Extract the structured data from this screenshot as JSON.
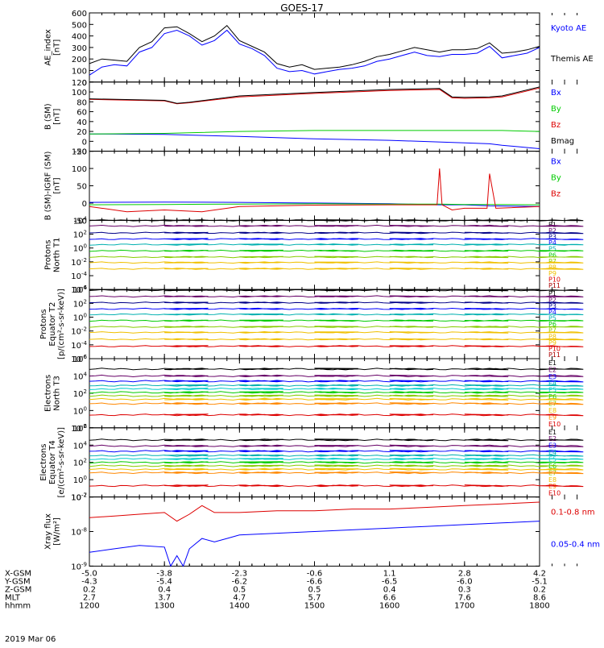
{
  "title": "GOES-17",
  "colors": {
    "black": "#000000",
    "blue": "#0000ff",
    "green": "#00cc00",
    "red": "#dd0000",
    "cyan": "#00cccc",
    "teal": "#00b0b0",
    "yellow": "#f0c000",
    "orange": "#ff8800",
    "darkred": "#aa0000",
    "navy": "#000088",
    "purple": "#660066"
  },
  "chart_data": [
    {
      "id": "ae",
      "type": "line",
      "ylabel": [
        "AE_index",
        "[nT]"
      ],
      "ylim": [
        0,
        600
      ],
      "log": false,
      "yticks": [
        "0",
        "100",
        "200",
        "300",
        "400",
        "500",
        "600"
      ],
      "ytickvals": [
        0,
        100,
        200,
        300,
        400,
        500,
        600
      ],
      "series": [
        {
          "name": "Kyoto AE",
          "color": "#0000ff",
          "x": [
            1200,
            1210,
            1220,
            1230,
            1240,
            1250,
            1300,
            1310,
            1320,
            1330,
            1340,
            1350,
            1400,
            1410,
            1420,
            1430,
            1440,
            1450,
            1500,
            1510,
            1520,
            1530,
            1540,
            1550,
            1600,
            1610,
            1620,
            1630,
            1640,
            1650,
            1700,
            1710,
            1720,
            1730,
            1740,
            1750,
            1800
          ],
          "y": [
            60,
            130,
            150,
            140,
            260,
            300,
            420,
            450,
            400,
            320,
            360,
            450,
            330,
            290,
            230,
            120,
            90,
            100,
            70,
            90,
            110,
            120,
            140,
            180,
            200,
            230,
            260,
            230,
            220,
            240,
            240,
            250,
            310,
            210,
            230,
            250,
            300
          ]
        },
        {
          "name": "Themis AE",
          "color": "#000000",
          "x": [
            1200,
            1210,
            1220,
            1230,
            1240,
            1250,
            1300,
            1310,
            1320,
            1330,
            1340,
            1350,
            1400,
            1410,
            1420,
            1430,
            1440,
            1450,
            1500,
            1510,
            1520,
            1530,
            1540,
            1550,
            1600,
            1610,
            1620,
            1630,
            1640,
            1650,
            1700,
            1710,
            1720,
            1730,
            1740,
            1750,
            1800
          ],
          "y": [
            160,
            200,
            190,
            180,
            300,
            350,
            470,
            480,
            420,
            350,
            400,
            490,
            360,
            310,
            260,
            160,
            130,
            150,
            110,
            120,
            130,
            150,
            180,
            220,
            240,
            270,
            300,
            280,
            260,
            280,
            280,
            290,
            340,
            250,
            260,
            280,
            310
          ]
        }
      ]
    },
    {
      "id": "bsm",
      "type": "line",
      "ylabel": [
        "B (SM)",
        "[nT]"
      ],
      "ylim": [
        -20,
        120
      ],
      "log": false,
      "yticks": [
        "-20",
        "0",
        "20",
        "40",
        "60",
        "80",
        "100",
        "120"
      ],
      "ytickvals": [
        -20,
        0,
        20,
        40,
        60,
        80,
        100,
        120
      ],
      "series": [
        {
          "name": "Bx",
          "color": "#0000ff",
          "x": [
            1200,
            1300,
            1400,
            1500,
            1600,
            1700,
            1720,
            1730,
            1800
          ],
          "y": [
            15,
            14,
            10,
            5,
            2,
            -3,
            -5,
            -8,
            -15
          ]
        },
        {
          "name": "By",
          "color": "#00cc00",
          "x": [
            1200,
            1300,
            1400,
            1500,
            1600,
            1700,
            1720,
            1730,
            1800
          ],
          "y": [
            15,
            16,
            20,
            22,
            22,
            22,
            22,
            22,
            20
          ]
        },
        {
          "name": "Bz",
          "color": "#dd0000",
          "x": [
            1200,
            1300,
            1310,
            1320,
            1400,
            1500,
            1600,
            1640,
            1650,
            1700,
            1720,
            1730,
            1800
          ],
          "y": [
            85,
            82,
            76,
            78,
            90,
            97,
            103,
            105,
            88,
            87,
            88,
            90,
            108
          ]
        },
        {
          "name": "Bmag",
          "color": "#000000",
          "x": [
            1200,
            1300,
            1310,
            1320,
            1400,
            1500,
            1600,
            1640,
            1650,
            1700,
            1720,
            1730,
            1800
          ],
          "y": [
            86,
            83,
            77,
            79,
            92,
            99,
            105,
            107,
            90,
            89,
            90,
            92,
            110
          ]
        }
      ]
    },
    {
      "id": "bigrf",
      "type": "line",
      "ylabel": [
        "B (SM)-IGRF (SM)",
        "[nT]"
      ],
      "ylim": [
        -50,
        150
      ],
      "log": false,
      "yticks": [
        "-50",
        "0",
        "50",
        "100",
        "150"
      ],
      "ytickvals": [
        -50,
        0,
        50,
        100,
        150
      ],
      "series": [
        {
          "name": "Bx",
          "color": "#0000ff",
          "x": [
            1200,
            1300,
            1400,
            1500,
            1600,
            1640,
            1700,
            1720,
            1800
          ],
          "y": [
            2,
            3,
            2,
            0,
            -2,
            -5,
            -5,
            -8,
            -10
          ]
        },
        {
          "name": "By",
          "color": "#00cc00",
          "x": [
            1200,
            1300,
            1400,
            1500,
            1600,
            1640,
            1700,
            1720,
            1800
          ],
          "y": [
            -5,
            -4,
            -3,
            -2,
            -3,
            -3,
            -4,
            -4,
            -5
          ]
        },
        {
          "name": "Bz",
          "color": "#dd0000",
          "x": [
            1200,
            1230,
            1300,
            1330,
            1400,
            1500,
            1600,
            1638,
            1640,
            1642,
            1650,
            1700,
            1718,
            1720,
            1725,
            1800
          ],
          "y": [
            -10,
            -25,
            -20,
            -25,
            -10,
            -6,
            -5,
            -5,
            100,
            -5,
            -20,
            -15,
            -15,
            85,
            -15,
            -10
          ]
        }
      ]
    },
    {
      "id": "protT1",
      "type": "line",
      "ylabel": [
        "Protons",
        "North T1"
      ],
      "ylim": [
        -6,
        4
      ],
      "log": true,
      "yticks": [
        "10^4",
        "10^2",
        "10^0",
        "10^-2",
        "10^-4",
        "10^-6"
      ],
      "ytickvals": [
        4,
        2,
        0,
        -2,
        -4,
        -6
      ],
      "series": [
        {
          "name": "P1",
          "color": "#000000",
          "level": 4.0
        },
        {
          "name": "P2",
          "color": "#660066",
          "level": 3.2
        },
        {
          "name": "P3",
          "color": "#000088",
          "level": 2.2
        },
        {
          "name": "P4",
          "color": "#0000ff",
          "level": 1.3
        },
        {
          "name": "P5",
          "color": "#00b0b0",
          "level": 0.5
        },
        {
          "name": "P6",
          "color": "#00cc00",
          "level": -0.4
        },
        {
          "name": "P7",
          "color": "#88cc00",
          "level": -1.3
        },
        {
          "name": "P8",
          "color": "#f0c000",
          "level": -2.1
        },
        {
          "name": "P9",
          "color": "#f0c000",
          "level": -3.0
        },
        {
          "name": "P10",
          "color": "#dd0000",
          "level": null
        },
        {
          "name": "P11",
          "color": "#aa0000",
          "level": null
        }
      ]
    },
    {
      "id": "protT2",
      "type": "line",
      "ylabel": [
        "Protons",
        "Equator T2",
        "[p/(cm²-s-sr-keV)]"
      ],
      "ylim": [
        -6,
        4
      ],
      "log": true,
      "yticks": [
        "10^4",
        "10^2",
        "10^0",
        "10^-2",
        "10^-4",
        "10^-6"
      ],
      "ytickvals": [
        4,
        2,
        0,
        -2,
        -4,
        -6
      ],
      "series": [
        {
          "name": "P1",
          "color": "#000000",
          "level": 3.9
        },
        {
          "name": "P2",
          "color": "#660066",
          "level": 3.0
        },
        {
          "name": "P3",
          "color": "#000088",
          "level": 2.1
        },
        {
          "name": "P4",
          "color": "#0000ff",
          "level": 1.2
        },
        {
          "name": "P5",
          "color": "#00b0b0",
          "level": 0.4
        },
        {
          "name": "P6",
          "color": "#00cc00",
          "level": -0.5
        },
        {
          "name": "P7",
          "color": "#88cc00",
          "level": -1.4
        },
        {
          "name": "P8",
          "color": "#f0c000",
          "level": -2.2
        },
        {
          "name": "P9",
          "color": "#f0c000",
          "level": -3.2
        },
        {
          "name": "P10",
          "color": "#dd0000",
          "level": -4.2
        },
        {
          "name": "P11",
          "color": "#aa0000",
          "level": null
        }
      ]
    },
    {
      "id": "elecT3",
      "type": "line",
      "ylabel": [
        "Electrons",
        "North T3"
      ],
      "ylim": [
        -2,
        6
      ],
      "log": true,
      "yticks": [
        "10^6",
        "10^4",
        "10^2",
        "10^0",
        "10^-2"
      ],
      "ytickvals": [
        6,
        4,
        2,
        0,
        -2
      ],
      "series": [
        {
          "name": "E1",
          "color": "#000000",
          "level": 4.8
        },
        {
          "name": "E2",
          "color": "#660066",
          "level": 4.0
        },
        {
          "name": "E3",
          "color": "#0000ff",
          "level": 3.4
        },
        {
          "name": "E4",
          "color": "#00b0b0",
          "level": 2.9
        },
        {
          "name": "E5",
          "color": "#00cccc",
          "level": 2.5
        },
        {
          "name": "E6",
          "color": "#00cc00",
          "level": 2.1
        },
        {
          "name": "E7",
          "color": "#88cc00",
          "level": 1.7
        },
        {
          "name": "E8",
          "color": "#f0c000",
          "level": 1.3
        },
        {
          "name": "E9",
          "color": "#ff8800",
          "level": 0.8
        },
        {
          "name": "E10",
          "color": "#dd0000",
          "level": -0.5
        }
      ]
    },
    {
      "id": "elecT4",
      "type": "line",
      "ylabel": [
        "Electrons",
        "Equator T4",
        "[e/(cm²-s-sr-keV)]"
      ],
      "ylim": [
        -2,
        6
      ],
      "log": true,
      "yticks": [
        "10^6",
        "10^4",
        "10^2",
        "10^0",
        "10^-2"
      ],
      "ytickvals": [
        6,
        4,
        2,
        0,
        -2
      ],
      "series": [
        {
          "name": "E1",
          "color": "#000000",
          "level": 4.6
        },
        {
          "name": "E2",
          "color": "#660066",
          "level": 3.9
        },
        {
          "name": "E3",
          "color": "#0000ff",
          "level": 3.3
        },
        {
          "name": "E4",
          "color": "#00b0b0",
          "level": 2.8
        },
        {
          "name": "E5",
          "color": "#00cccc",
          "level": 2.4
        },
        {
          "name": "E6",
          "color": "#00cc00",
          "level": 2.0
        },
        {
          "name": "E7",
          "color": "#88cc00",
          "level": 1.6
        },
        {
          "name": "E8",
          "color": "#f0c000",
          "level": 1.2
        },
        {
          "name": "E9",
          "color": "#ff8800",
          "level": 0.8
        },
        {
          "name": "E10",
          "color": "#dd0000",
          "level": -0.7
        }
      ]
    },
    {
      "id": "xray",
      "type": "line",
      "ylabel": [
        "Xray flux",
        "[W/m²]"
      ],
      "ylim": [
        -9,
        -7
      ],
      "log": true,
      "yticks": [
        "10^-7",
        "10^-8",
        "10^-9"
      ],
      "ytickvals": [
        -7,
        -8,
        -9
      ],
      "series": [
        {
          "name": "0.1-0.8 nm",
          "color": "#dd0000",
          "x": [
            1200,
            1220,
            1240,
            1300,
            1310,
            1320,
            1330,
            1340,
            1350,
            1400,
            1430,
            1500,
            1530,
            1600,
            1630,
            1700,
            1730,
            1800
          ],
          "y": [
            -7.6,
            -7.55,
            -7.5,
            -7.45,
            -7.7,
            -7.5,
            -7.25,
            -7.45,
            -7.45,
            -7.45,
            -7.4,
            -7.4,
            -7.35,
            -7.35,
            -7.3,
            -7.25,
            -7.2,
            -7.15
          ]
        },
        {
          "name": "0.05-0.4 nm",
          "color": "#0000ff",
          "x": [
            1200,
            1220,
            1240,
            1300,
            1305,
            1310,
            1315,
            1320,
            1330,
            1340,
            1350,
            1400,
            1430,
            1500,
            1530,
            1600,
            1630,
            1700,
            1730,
            1800
          ],
          "y": [
            -8.6,
            -8.5,
            -8.4,
            -8.45,
            -9.0,
            -8.7,
            -9.0,
            -8.5,
            -8.2,
            -8.3,
            -8.2,
            -8.1,
            -8.05,
            -8.0,
            -7.95,
            -7.9,
            -7.85,
            -7.8,
            -7.75,
            -7.7
          ]
        }
      ]
    }
  ],
  "axis_rows": [
    {
      "label": "X-GSM",
      "values": [
        "-5.0",
        "-3.8",
        "-2.3",
        "-0.6",
        "1.1",
        "2.8",
        "4.2"
      ]
    },
    {
      "label": "Y-GSM",
      "values": [
        "-4.3",
        "-5.4",
        "-6.2",
        "-6.6",
        "-6.5",
        "-6.0",
        "-5.1"
      ]
    },
    {
      "label": "Z-GSM",
      "values": [
        "0.2",
        "0.4",
        "0.5",
        "0.5",
        "0.4",
        "0.3",
        "0.2"
      ]
    },
    {
      "label": "MLT",
      "values": [
        "2.7",
        "3.7",
        "4.7",
        "5.7",
        "6.6",
        "7.6",
        "8.6"
      ]
    },
    {
      "label": "hhmm",
      "values": [
        "1200",
        "1300",
        "1400",
        "1500",
        "1600",
        "1700",
        "1800"
      ]
    }
  ],
  "date_label": "2019 Mar 06"
}
